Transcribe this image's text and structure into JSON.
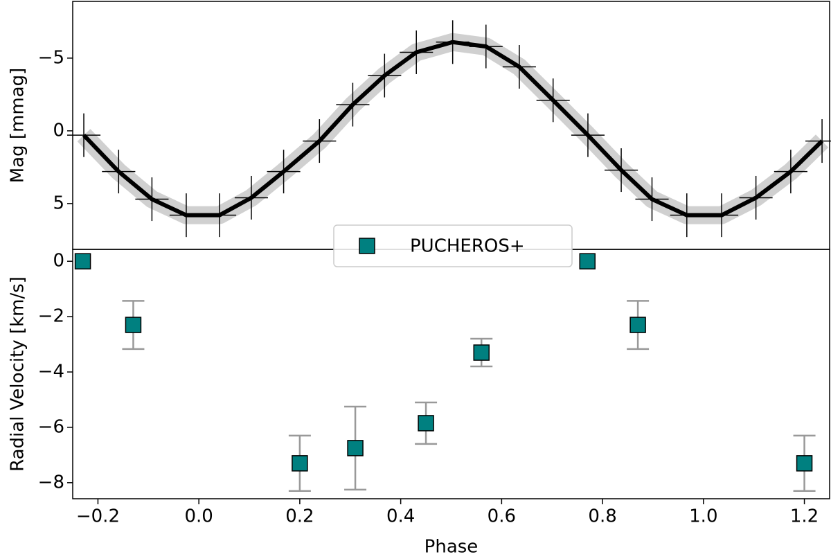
{
  "chart_data": [
    {
      "type": "errorline",
      "ylabel": "Mag [mmag]",
      "xlim": [
        -0.25,
        1.25
      ],
      "ylim": [
        8.15,
        -8.9
      ],
      "yticks": [
        {
          "value": -5,
          "label": "−5"
        },
        0,
        5
      ],
      "series": [
        {
          "color": "#000000",
          "band_color": "#c4c4c4",
          "xerr": 0.033,
          "yerr": 1.5,
          "x": [
            -0.228,
            -0.159,
            -0.093,
            -0.025,
            0.041,
            0.104,
            0.168,
            0.239,
            0.305,
            0.368,
            0.431,
            0.503,
            0.569,
            0.635,
            0.702,
            0.771,
            0.837,
            0.898,
            0.967,
            1.036,
            1.104,
            1.173,
            1.235
          ],
          "values": [
            0.3,
            2.8,
            4.7,
            5.8,
            5.8,
            4.6,
            2.8,
            0.7,
            -1.8,
            -3.8,
            -5.4,
            -6.1,
            -5.8,
            -4.4,
            -2.1,
            0.3,
            2.7,
            4.7,
            5.8,
            5.8,
            4.6,
            2.8,
            0.7
          ]
        }
      ]
    },
    {
      "type": "errorscatter",
      "ylabel": "Radial Velocity [km/s]",
      "xlabel": "Phase",
      "xlim": [
        -0.25,
        1.25
      ],
      "xticks": [
        {
          "value": -0.2,
          "label": "−0.2"
        },
        {
          "value": 0,
          "label": "0.0"
        },
        0.2,
        0.4,
        0.6,
        0.8,
        {
          "value": 1,
          "label": "1.0"
        },
        1.2
      ],
      "ylim": [
        -8.58,
        0.43
      ],
      "yticks": [
        {
          "value": -8,
          "label": "−8"
        },
        {
          "value": -6,
          "label": "−6"
        },
        {
          "value": -4,
          "label": "−4"
        },
        {
          "value": -2,
          "label": "−2"
        },
        0
      ],
      "legend": "upper center",
      "series": [
        {
          "name": "PUCHEROS+",
          "color": "#008080",
          "err_color": "#999999",
          "x": [
            -0.23,
            -0.13,
            0.2,
            0.31,
            0.45,
            0.56,
            0.77,
            0.87,
            1.2
          ],
          "values": [
            0,
            -2.3,
            -7.3,
            -6.75,
            -5.85,
            -3.3,
            0,
            -2.3,
            -7.3
          ],
          "errors": [
            0,
            0.87,
            1.0,
            1.5,
            0.75,
            0.5,
            0,
            0.87,
            1.0
          ]
        }
      ]
    }
  ]
}
